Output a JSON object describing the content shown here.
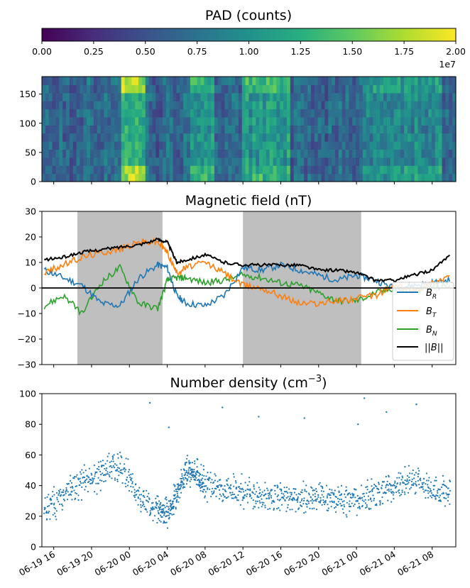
{
  "colorbar": {
    "title": "PAD (counts)",
    "ticks": [
      "0.00",
      "0.25",
      "0.50",
      "0.75",
      "1.00",
      "1.25",
      "1.50",
      "1.75",
      "2.00"
    ],
    "range": [
      0,
      2.0
    ],
    "multiplier": "1e7",
    "colormap": "viridis"
  },
  "shared_x": {
    "ticks": [
      "06-19 16",
      "06-19 20",
      "06-20 00",
      "06-20 04",
      "06-20 08",
      "06-20 12",
      "06-20 16",
      "06-20 20",
      "06-21 00",
      "06-21 04",
      "06-21 08"
    ]
  },
  "chart_data": [
    {
      "type": "heatmap",
      "title": "",
      "ylabel": "",
      "ylim": [
        0,
        180
      ],
      "yticks": [
        "0",
        "50",
        "100",
        "150"
      ],
      "note": "pitch-angle distribution, colour scale 0 to 2.00e7 counts",
      "columns": 120,
      "rows": 13,
      "bright_bands": [
        {
          "x_range": [
            "06-19 23:00",
            "06-20 01:40"
          ],
          "level": "high (≈1.5–2.0e7), strongest near 0 and 180"
        },
        {
          "x_range": [
            "06-20 06:30",
            "06-20 09:00"
          ],
          "level": "medium-high (≈1.0–1.6e7)"
        },
        {
          "x_range": [
            "06-20 12:00",
            "06-20 17:00"
          ],
          "level": "medium-high, bright at low angles"
        },
        {
          "x_range": [
            "06-21 00:30",
            "06-21 09:00"
          ],
          "level": "medium (≈0.8–1.3e7)"
        }
      ]
    },
    {
      "type": "line",
      "title": "Magnetic field (nT)",
      "ylim": [
        -30,
        30
      ],
      "yticks": [
        "30",
        "20",
        "10",
        "0",
        "−10",
        "−20",
        "−30"
      ],
      "legend": {
        "position": "lower right",
        "entries": [
          "B_R",
          "B_T",
          "B_N",
          "||B||"
        ]
      },
      "shaded_intervals": [
        [
          "06-19 18:30",
          "06-20 03:30"
        ],
        [
          "06-20 12:00",
          "06-21 00:30"
        ]
      ],
      "x": [
        "06-19 15:00",
        "06-19 17:00",
        "06-19 19:00",
        "06-19 21:00",
        "06-19 23:00",
        "06-20 01:00",
        "06-20 03:00",
        "06-20 04:00",
        "06-20 05:00",
        "06-20 06:00",
        "06-20 08:00",
        "06-20 10:00",
        "06-20 12:00",
        "06-20 14:00",
        "06-20 16:00",
        "06-20 18:00",
        "06-20 20:00",
        "06-20 22:00",
        "06-21 00:00",
        "06-21 02:00",
        "06-21 04:00",
        "06-21 06:00",
        "06-21 08:00",
        "06-21 10:00"
      ],
      "series": [
        {
          "name": "B_R",
          "color": "#1f77b4",
          "values": [
            7,
            4,
            1,
            -6,
            -7,
            4,
            9,
            8,
            -3,
            -6,
            -7,
            -3,
            8,
            7,
            9,
            7,
            5,
            3,
            5,
            3,
            0,
            1,
            2,
            3
          ]
        },
        {
          "name": "B_T",
          "color": "#ff7f0e",
          "values": [
            6,
            9,
            12,
            14,
            15,
            18,
            18,
            14,
            6,
            8,
            10,
            6,
            1,
            0,
            -3,
            -6,
            -6,
            -5,
            -4,
            -3,
            1,
            -1,
            2,
            5
          ]
        },
        {
          "name": "B_N",
          "color": "#2ca02c",
          "values": [
            -7,
            -3,
            -10,
            2,
            8,
            -6,
            -8,
            3,
            4,
            4,
            2,
            3,
            5,
            4,
            2,
            1,
            -2,
            -5,
            -5,
            -2,
            0,
            -1,
            0,
            1
          ]
        },
        {
          "name": "||B||",
          "color": "#000000",
          "values": [
            11,
            12,
            14,
            15,
            16,
            17,
            19,
            18,
            10,
            11,
            13,
            10,
            9,
            9,
            9,
            9,
            7,
            7,
            6,
            3,
            3,
            5,
            7,
            13
          ]
        }
      ]
    },
    {
      "type": "scatter",
      "title": "Number density (cm⁻³)",
      "ylim": [
        0,
        100
      ],
      "yticks": [
        "100",
        "80",
        "60",
        "40",
        "20",
        "0"
      ],
      "color": "#1f77b4",
      "x": [
        "06-19 15:00",
        "06-19 17:00",
        "06-19 19:00",
        "06-19 21:00",
        "06-19 23:00",
        "06-20 01:00",
        "06-20 03:00",
        "06-20 04:00",
        "06-20 05:00",
        "06-20 06:00",
        "06-20 07:00",
        "06-20 08:00",
        "06-20 10:00",
        "06-20 12:00",
        "06-20 14:00",
        "06-20 16:00",
        "06-20 18:00",
        "06-20 20:00",
        "06-20 22:00",
        "06-21 00:00",
        "06-21 02:00",
        "06-21 04:00",
        "06-21 06:00",
        "06-21 08:00",
        "06-21 10:00"
      ],
      "values": [
        22,
        35,
        42,
        48,
        55,
        32,
        24,
        20,
        35,
        50,
        48,
        40,
        38,
        35,
        33,
        33,
        32,
        33,
        32,
        30,
        35,
        40,
        45,
        35,
        38
      ],
      "outliers": [
        {
          "x": "06-20 02:10",
          "y": 94
        },
        {
          "x": "06-20 04:10",
          "y": 78
        },
        {
          "x": "06-20 09:50",
          "y": 91
        },
        {
          "x": "06-20 13:40",
          "y": 85
        },
        {
          "x": "06-20 18:30",
          "y": 84
        },
        {
          "x": "06-21 00:10",
          "y": 80
        },
        {
          "x": "06-21 00:50",
          "y": 97
        },
        {
          "x": "06-21 03:10",
          "y": 88
        },
        {
          "x": "06-21 06:20",
          "y": 93
        }
      ]
    }
  ],
  "colors": {
    "shade": "#bfbfbf",
    "dots": "#1f77b4"
  }
}
